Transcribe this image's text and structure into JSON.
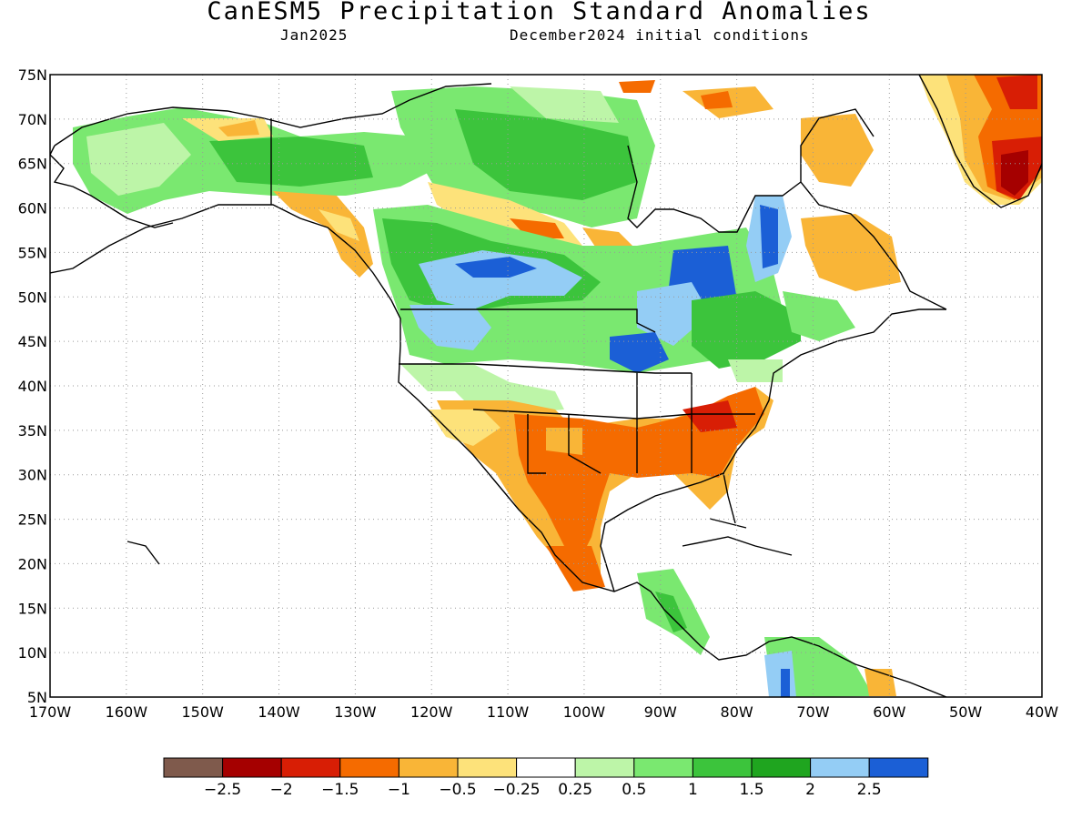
{
  "title": "CanESM5 Precipitation Standard Anomalies",
  "subtitle_left": "Jan2025",
  "subtitle_right": "December2024 initial conditions",
  "map": {
    "lon_range": [
      -170,
      -40
    ],
    "lat_range": [
      5,
      75
    ],
    "lat_ticks": [
      "75N",
      "70N",
      "65N",
      "60N",
      "55N",
      "50N",
      "45N",
      "40N",
      "35N",
      "30N",
      "25N",
      "20N",
      "15N",
      "10N",
      "5N"
    ],
    "lon_ticks": [
      "170W",
      "160W",
      "150W",
      "140W",
      "130W",
      "120W",
      "110W",
      "100W",
      "90W",
      "80W",
      "70W",
      "60W",
      "50W",
      "40W"
    ],
    "gridlines": "dotted",
    "regions": [
      {
        "name": "alaska-interior",
        "category": "0.5 to 1"
      },
      {
        "name": "southeast-us",
        "category": "-1.5 to -1"
      },
      {
        "name": "tennessee-valley",
        "category": "-2 to -1.5"
      },
      {
        "name": "southwest-us",
        "category": "-1 to -0.5"
      },
      {
        "name": "mexico",
        "category": "-1.5 to -1"
      },
      {
        "name": "pacific-northwest",
        "category": "2 to 2.5"
      },
      {
        "name": "great-lakes-west",
        "category": "2.5+"
      },
      {
        "name": "hudson-bay-east",
        "category": "2.5+"
      },
      {
        "name": "greenland-southwest",
        "category": "-2.5 to -2"
      },
      {
        "name": "labrador",
        "category": "-1 to -0.5"
      },
      {
        "name": "northern-canada",
        "category": "1 to 1.5"
      }
    ]
  },
  "colorbar": {
    "colors": [
      "#7f5a4c",
      "#a50000",
      "#d81e05",
      "#f56b00",
      "#f9b537",
      "#fde27a",
      "#ffffff",
      "#bdf5a8",
      "#7ae870",
      "#3cc43c",
      "#1fa51f",
      "#94cdf5",
      "#1b5fd6"
    ],
    "labels": [
      "-2.5",
      "-2",
      "-1.5",
      "-1",
      "-0.5",
      "-0.25",
      "0.25",
      "0.5",
      "1",
      "1.5",
      "2",
      "2.5"
    ]
  }
}
